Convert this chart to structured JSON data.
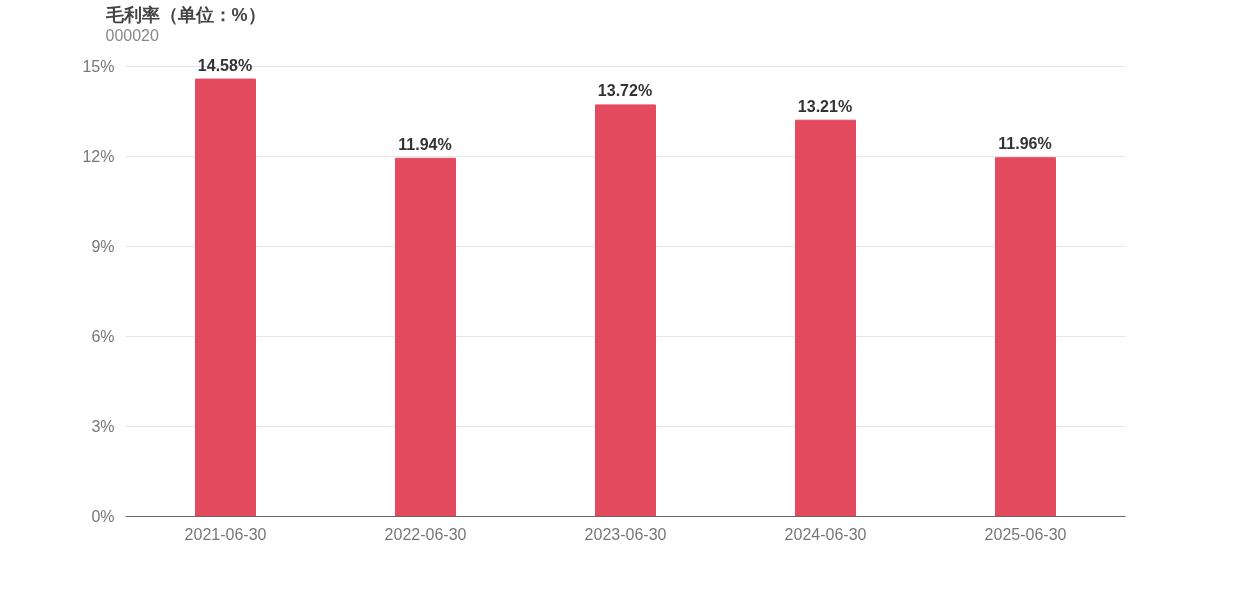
{
  "chart_data": {
    "type": "bar",
    "title": "毛利率（单位：%）",
    "subtitle": "000020",
    "categories": [
      "2021-06-30",
      "2022-06-30",
      "2023-06-30",
      "2024-06-30",
      "2025-06-30"
    ],
    "values": [
      14.58,
      11.94,
      13.72,
      13.21,
      11.96
    ],
    "value_labels": [
      "14.58%",
      "11.94%",
      "13.72%",
      "13.21%",
      "11.96%"
    ],
    "color": "#e34a5e",
    "ylim": [
      0,
      15
    ],
    "yticks": [
      {
        "value": 0,
        "label": "0%"
      },
      {
        "value": 3,
        "label": "3%"
      },
      {
        "value": 6,
        "label": "6%"
      },
      {
        "value": 9,
        "label": "9%"
      },
      {
        "value": 12,
        "label": "12%"
      },
      {
        "value": 15,
        "label": "15%"
      }
    ],
    "grid": "y"
  }
}
